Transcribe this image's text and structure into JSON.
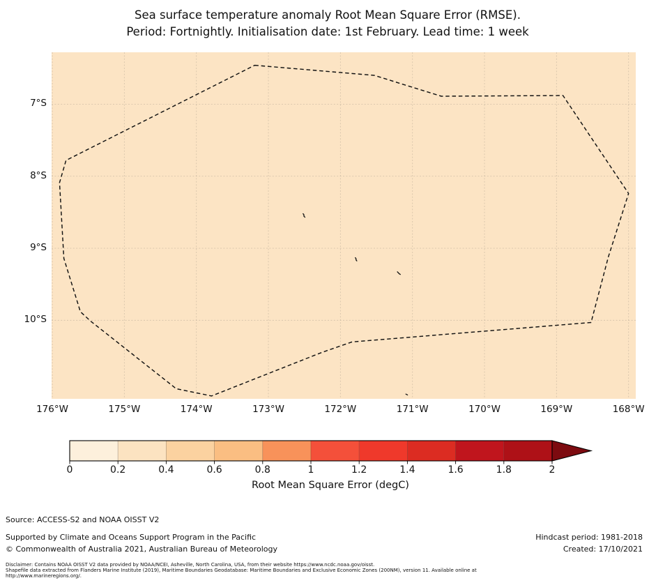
{
  "title": {
    "line1": "Sea surface temperature anomaly Root Mean Square Error (RMSE).",
    "line2": "Period: Fortnightly. Initialisation date: 1st February. Lead time: 1 week"
  },
  "footer": {
    "source": "Source: ACCESS-S2 and NOAA OISST V2",
    "supported": "Supported by Climate and Oceans Support Program in the Pacific",
    "copyright": "© Commonwealth of Australia 2021, Australian Bureau of Meteorology",
    "hindcast": "Hindcast period: 1981-2018",
    "created": "Created: 17/10/2021",
    "disclaimer_line1": "Disclaimer: Contains NOAA OISST V2 data provided by NOAA/NCEI, Asheville, North Carolina, USA, from their website https://www.ncdc.noaa.gov/oisst.",
    "disclaimer_line2": "Shapefile data extracted from Flanders Marine Institute (2019), Maritime Boundaries Geodatabase: Maritime Boundaries and Exclusive Economic Zones (200NM), version 11. Available online at",
    "disclaimer_line3": "http://www.marineregions.org/."
  },
  "chart_data": {
    "type": "heatmap",
    "title": "Sea surface temperature anomaly Root Mean Square Error (RMSE). Period: Fortnightly. Initialisation date: 1st February. Lead time: 1 week",
    "map_extent": {
      "lon_min": -176.01,
      "lon_max": -167.9,
      "lat_min": -11.09,
      "lat_max": -6.28
    },
    "x_tick_lons": [
      -176,
      -175,
      -174,
      -173,
      -172,
      -171,
      -170,
      -169,
      -168
    ],
    "x_tick_labels": [
      "176°W",
      "175°W",
      "174°W",
      "173°W",
      "172°W",
      "171°W",
      "170°W",
      "169°W",
      "168°W"
    ],
    "y_tick_lats": [
      -7,
      -8,
      -9,
      -10
    ],
    "y_tick_labels": [
      "7°S",
      "8°S",
      "9°S",
      "10°S"
    ],
    "grid": true,
    "field_fill_color": "#fce4c4",
    "field_value_band": [
      0.2,
      0.4
    ],
    "eez_boundary_lonlat": [
      [
        -173.19,
        -6.46
      ],
      [
        -171.53,
        -6.6
      ],
      [
        -170.6,
        -6.89
      ],
      [
        -168.91,
        -6.88
      ],
      [
        -168.0,
        -8.24
      ],
      [
        -168.28,
        -9.12
      ],
      [
        -168.52,
        -10.03
      ],
      [
        -171.84,
        -10.3
      ],
      [
        -172.27,
        -10.45
      ],
      [
        -173.79,
        -11.05
      ],
      [
        -174.28,
        -10.95
      ],
      [
        -175.47,
        -10.01
      ],
      [
        -175.61,
        -9.88
      ],
      [
        -175.84,
        -9.14
      ],
      [
        -175.9,
        -8.09
      ],
      [
        -175.81,
        -7.78
      ]
    ],
    "island_marks_lonlat": [
      [
        -172.5,
        -8.55
      ],
      [
        -171.78,
        -9.16
      ],
      [
        -171.19,
        -9.35
      ],
      [
        -171.08,
        -11.03
      ]
    ],
    "colorbar": {
      "label": "Root Mean Square Error (degC)",
      "tick_labels": [
        "0",
        "0.2",
        "0.4",
        "0.6",
        "0.8",
        "1",
        "1.2",
        "1.4",
        "1.6",
        "1.8",
        "2"
      ],
      "tick_values": [
        0,
        0.2,
        0.4,
        0.6,
        0.8,
        1.0,
        1.2,
        1.4,
        1.6,
        1.8,
        2.0
      ],
      "segment_colors": [
        "#fdf0dc",
        "#fce3c1",
        "#fbd2a0",
        "#fabe82",
        "#f8925a",
        "#f4503a",
        "#ef392b",
        "#dc2c22",
        "#c0151d",
        "#ae1117"
      ],
      "extend": "max",
      "extend_max_color": "#7d0b10",
      "boundary_dash_color": "#111111",
      "grid_color": "#b9ab97"
    }
  }
}
